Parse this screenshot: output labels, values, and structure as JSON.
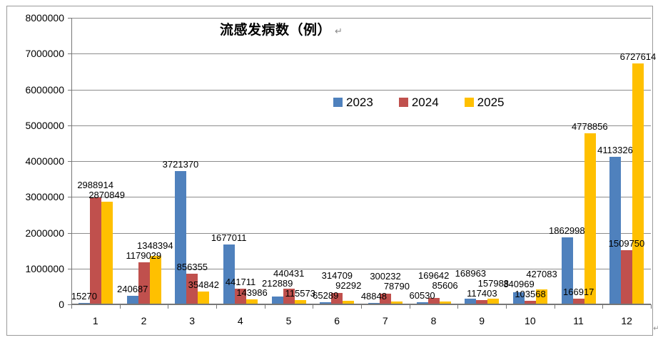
{
  "marks": {
    "title_return": "↵",
    "outer_return": "↵"
  },
  "chart_data": {
    "type": "bar",
    "title": "流感发病数（例）",
    "xlabel": "",
    "ylabel": "",
    "categories": [
      "1",
      "2",
      "3",
      "4",
      "5",
      "6",
      "7",
      "8",
      "9",
      "10",
      "11",
      "12"
    ],
    "series": [
      {
        "name": "2023",
        "color": "#4F81BD",
        "values": [
          15270,
          240687,
          3721370,
          1677011,
          212889,
          65289,
          48848,
          60530,
          168963,
          340969,
          1862998,
          4113326
        ]
      },
      {
        "name": "2024",
        "color": "#C0504D",
        "values": [
          2988914,
          1179029,
          856355,
          441711,
          440431,
          314709,
          300232,
          169642,
          117403,
          103568,
          166917,
          1509750
        ]
      },
      {
        "name": "2025",
        "color": "#FFC000",
        "values": [
          2870849,
          1348394,
          354842,
          143986,
          115573,
          92292,
          78790,
          85606,
          157988,
          427083,
          4778856,
          6727614
        ]
      }
    ],
    "y_axis": {
      "min": 0,
      "max": 8000000,
      "step": 1000000,
      "tick_labels": [
        "0",
        "1000000",
        "2000000",
        "3000000",
        "4000000",
        "5000000",
        "6000000",
        "7000000",
        "8000000"
      ]
    },
    "legend": {
      "position": "inside-top-center-right",
      "entries": [
        "2023",
        "2024",
        "2025"
      ]
    },
    "grid": true,
    "data_labels": "outside-end",
    "style_colors": {
      "grid": "#8C8C8C",
      "axis": "#767676",
      "chart_border": "#9A9A9A",
      "label_text": "#000000"
    }
  }
}
